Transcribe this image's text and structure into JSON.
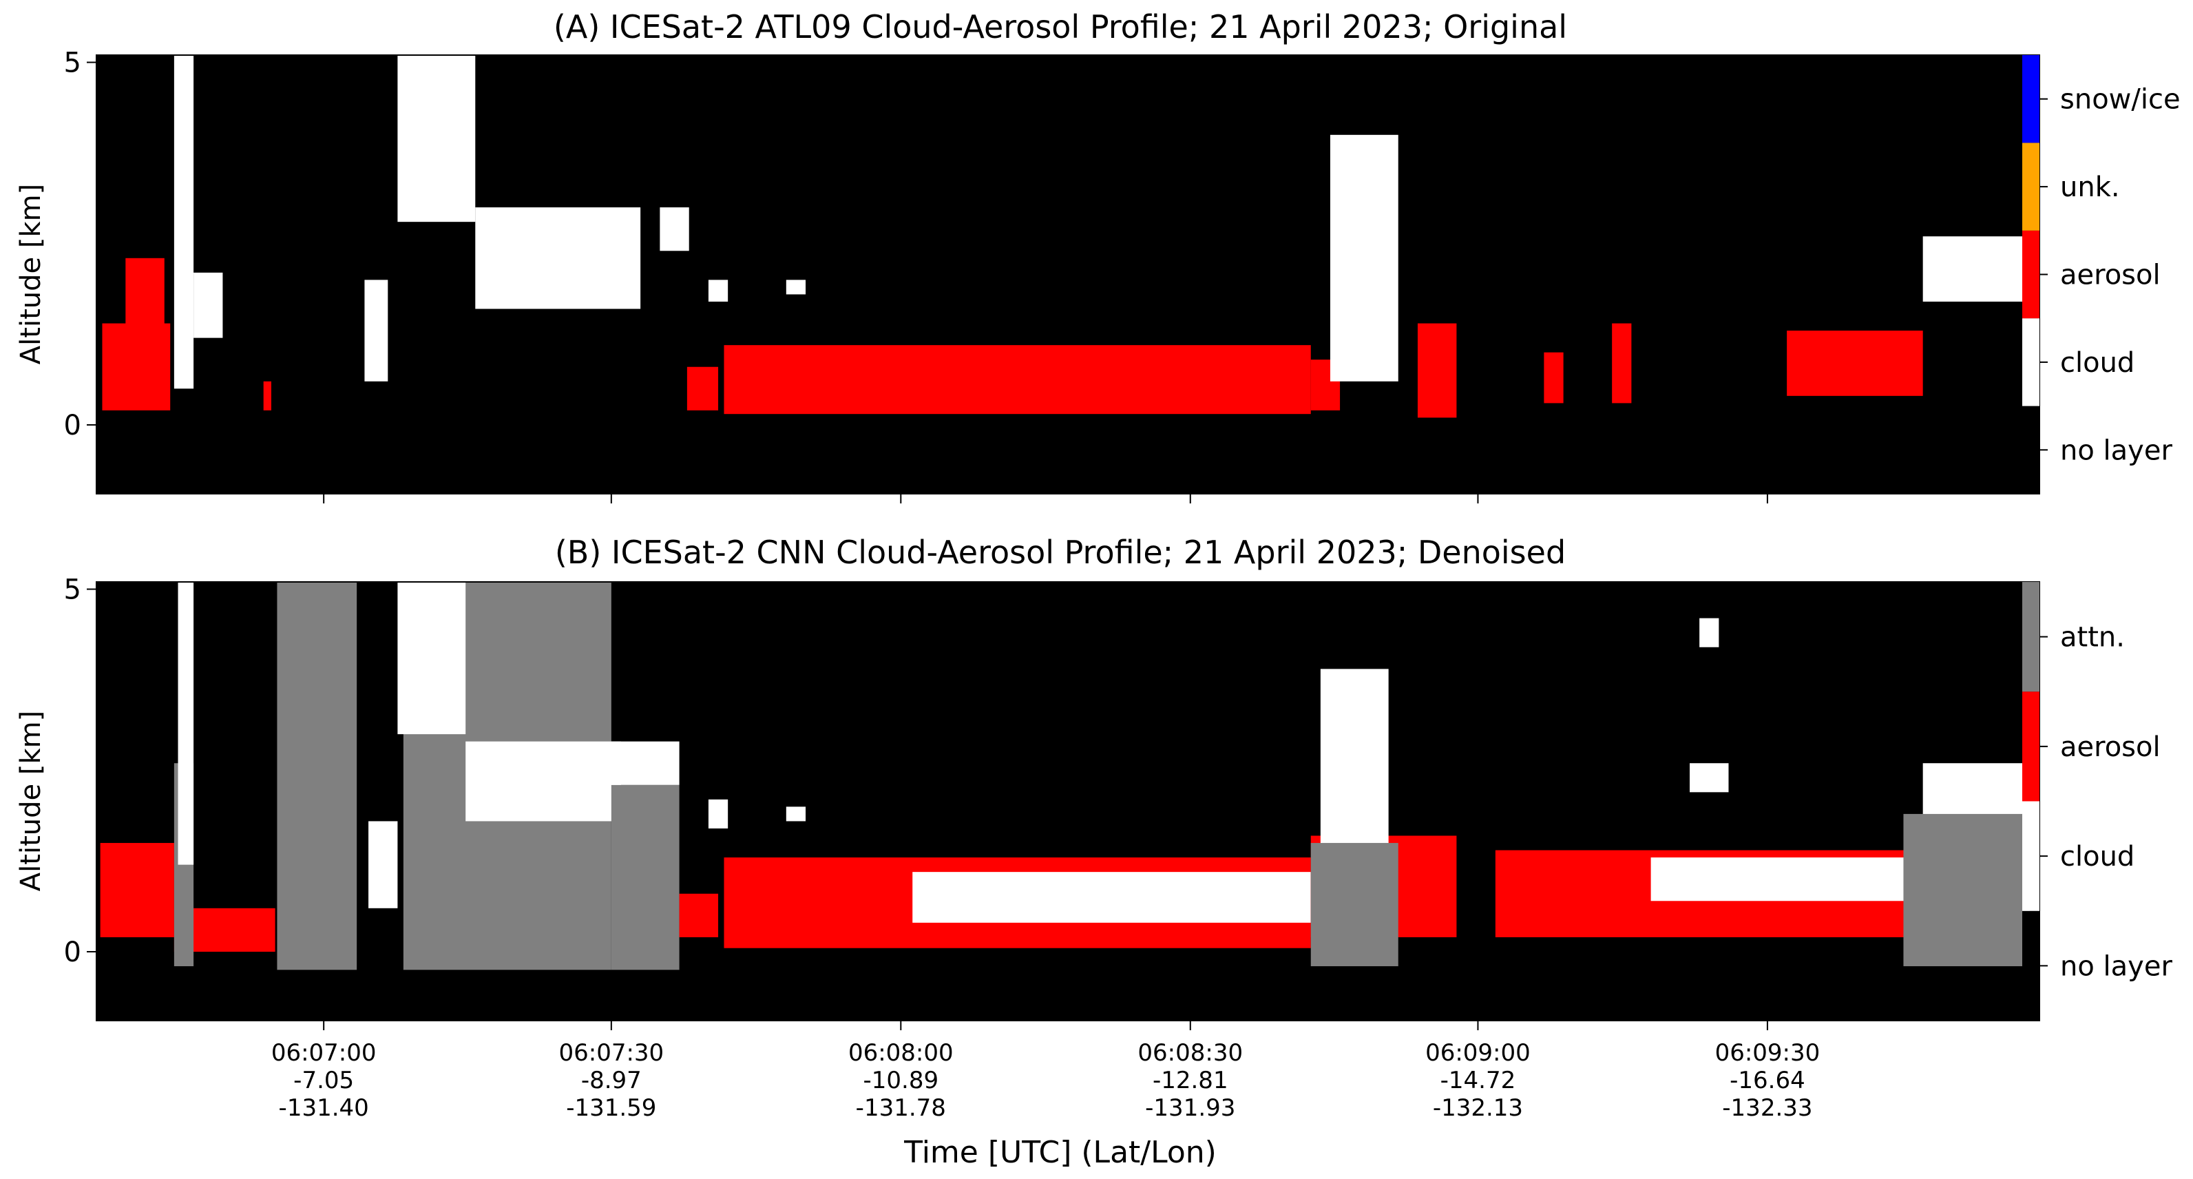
{
  "chart_data": [
    {
      "type": "heatmap",
      "panel": "A",
      "title": "(A) ICESat-2 ATL09 Cloud-Aerosol Profile; 21 April 2023; Original",
      "ylabel": "Altitude [km]",
      "yticks": [
        0,
        5
      ],
      "ylim": [
        -0.95,
        5.1
      ],
      "xlim": [
        0,
        100
      ],
      "x_tick_positions": [
        11.7,
        26.5,
        41.4,
        56.3,
        71.1,
        86.0
      ],
      "classes": [
        {
          "name": "no layer",
          "color": "#000000"
        },
        {
          "name": "cloud",
          "color": "#ffffff"
        },
        {
          "name": "aerosol",
          "color": "#ff0000"
        },
        {
          "name": "unk.",
          "color": "#ffa500"
        },
        {
          "name": "snow/ice",
          "color": "#0000ff"
        }
      ],
      "layers": [
        {
          "class": "aerosol",
          "x0": 0.3,
          "x1": 3.8,
          "bottom": 0.2,
          "top": 1.4
        },
        {
          "class": "aerosol",
          "x0": 1.5,
          "x2": 0,
          "x1": 3.5,
          "bottom": 0.3,
          "top": 2.3
        },
        {
          "class": "cloud",
          "x0": 4.0,
          "x1": 5.0,
          "bottom": 0.5,
          "top": 5.1
        },
        {
          "class": "cloud",
          "x0": 5.0,
          "x1": 6.5,
          "bottom": 1.2,
          "top": 2.1
        },
        {
          "class": "aerosol",
          "x0": 8.6,
          "x1": 9.0,
          "bottom": 0.2,
          "top": 0.6
        },
        {
          "class": "cloud",
          "x0": 13.8,
          "x1": 15.0,
          "bottom": 0.6,
          "top": 2.0
        },
        {
          "class": "cloud",
          "x0": 15.5,
          "x1": 19.5,
          "bottom": 2.8,
          "top": 5.1
        },
        {
          "class": "cloud",
          "x0": 19.5,
          "x1": 28.0,
          "bottom": 1.6,
          "top": 3.0
        },
        {
          "class": "cloud",
          "x0": 29.0,
          "x1": 30.5,
          "bottom": 2.4,
          "top": 3.0
        },
        {
          "class": "cloud",
          "x0": 31.5,
          "x1": 32.5,
          "bottom": 1.7,
          "top": 2.0
        },
        {
          "class": "cloud",
          "x0": 35.5,
          "x1": 36.5,
          "bottom": 1.8,
          "top": 2.0
        },
        {
          "class": "aerosol",
          "x0": 30.4,
          "x1": 32.0,
          "bottom": 0.2,
          "top": 0.8
        },
        {
          "class": "aerosol",
          "x0": 32.3,
          "x1": 62.5,
          "bottom": 0.15,
          "top": 1.1
        },
        {
          "class": "aerosol",
          "x0": 62.5,
          "x1": 64.0,
          "bottom": 0.2,
          "top": 0.9
        },
        {
          "class": "cloud",
          "x0": 63.5,
          "x1": 67.0,
          "bottom": 0.6,
          "top": 4.0
        },
        {
          "class": "aerosol",
          "x0": 68.0,
          "x1": 70.0,
          "bottom": 0.1,
          "top": 1.4
        },
        {
          "class": "aerosol",
          "x0": 74.5,
          "x1": 75.5,
          "bottom": 0.3,
          "top": 1.0
        },
        {
          "class": "aerosol",
          "x0": 78.0,
          "x1": 79.0,
          "bottom": 0.3,
          "top": 1.4
        },
        {
          "class": "aerosol",
          "x0": 87.0,
          "x1": 94.0,
          "bottom": 0.4,
          "top": 1.3
        },
        {
          "class": "cloud",
          "x0": 94.0,
          "x1": 99.8,
          "bottom": 1.7,
          "top": 2.6
        }
      ]
    },
    {
      "type": "heatmap",
      "panel": "B",
      "title": "(B) ICESat-2 CNN Cloud-Aerosol Profile; 21 April 2023; Denoised",
      "ylabel": "Altitude [km]",
      "xlabel": "Time [UTC] (Lat/Lon)",
      "yticks": [
        0,
        5
      ],
      "ylim": [
        -0.95,
        5.1
      ],
      "xlim": [
        0,
        100
      ],
      "x_tick_positions": [
        11.7,
        26.5,
        41.4,
        56.3,
        71.1,
        86.0
      ],
      "x_tick_labels": [
        [
          "06:07:00",
          "-7.05",
          "-131.40"
        ],
        [
          "06:07:30",
          "-8.97",
          "-131.59"
        ],
        [
          "06:08:00",
          "-10.89",
          "-131.78"
        ],
        [
          "06:08:30",
          "-12.81",
          "-131.93"
        ],
        [
          "06:09:00",
          "-14.72",
          "-132.13"
        ],
        [
          "06:09:30",
          "-16.64",
          "-132.33"
        ]
      ],
      "classes": [
        {
          "name": "no layer",
          "color": "#000000"
        },
        {
          "name": "cloud",
          "color": "#ffffff"
        },
        {
          "name": "aerosol",
          "color": "#ff0000"
        },
        {
          "name": "attn.",
          "color": "#808080"
        }
      ],
      "layers": [
        {
          "class": "aerosol",
          "x0": 0.2,
          "x1": 4.0,
          "bottom": 0.2,
          "top": 1.5
        },
        {
          "class": "aerosol",
          "x0": 4.0,
          "x1": 9.2,
          "bottom": 0.0,
          "top": 0.6
        },
        {
          "class": "attn.",
          "x0": 4.0,
          "x1": 5.0,
          "bottom": -0.2,
          "top": 2.6
        },
        {
          "class": "cloud",
          "x0": 4.2,
          "x1": 5.0,
          "bottom": 1.2,
          "top": 5.1
        },
        {
          "class": "attn.",
          "x0": 9.3,
          "x1": 13.4,
          "bottom": -0.25,
          "top": 5.1
        },
        {
          "class": "attn.",
          "x0": 15.8,
          "x1": 26.5,
          "bottom": -0.25,
          "top": 5.1
        },
        {
          "class": "cloud",
          "x0": 14.0,
          "x1": 15.5,
          "bottom": 0.6,
          "top": 1.8
        },
        {
          "class": "cloud",
          "x0": 15.5,
          "x1": 19.0,
          "bottom": 3.0,
          "top": 5.1
        },
        {
          "class": "cloud",
          "x0": 19.0,
          "x1": 27.0,
          "bottom": 1.8,
          "top": 2.9
        },
        {
          "class": "attn.",
          "x0": 26.5,
          "x1": 30.0,
          "bottom": -0.25,
          "top": 2.3
        },
        {
          "class": "cloud",
          "x0": 26.5,
          "x1": 30.0,
          "bottom": 2.3,
          "top": 2.9
        },
        {
          "class": "cloud",
          "x0": 31.5,
          "x1": 32.5,
          "bottom": 1.7,
          "top": 2.1
        },
        {
          "class": "cloud",
          "x0": 35.5,
          "x1": 36.5,
          "bottom": 1.8,
          "top": 2.0
        },
        {
          "class": "aerosol",
          "x0": 30.0,
          "x1": 32.0,
          "bottom": 0.2,
          "top": 0.8
        },
        {
          "class": "aerosol",
          "x0": 32.3,
          "x1": 62.5,
          "bottom": 0.05,
          "top": 1.3
        },
        {
          "class": "cloud",
          "x0": 42.0,
          "x1": 62.5,
          "bottom": 0.4,
          "top": 1.1
        },
        {
          "class": "aerosol",
          "x0": 62.5,
          "x1": 70.0,
          "bottom": 0.2,
          "top": 1.6
        },
        {
          "class": "cloud",
          "x0": 63.0,
          "x1": 66.5,
          "bottom": 1.3,
          "top": 3.9
        },
        {
          "class": "attn.",
          "x0": 62.5,
          "x1": 67.0,
          "bottom": -0.2,
          "top": 1.5
        },
        {
          "class": "aerosol",
          "x0": 72.0,
          "x1": 99.0,
          "bottom": 0.2,
          "top": 1.4
        },
        {
          "class": "cloud",
          "x0": 80.0,
          "x1": 96.0,
          "bottom": 0.7,
          "top": 1.3
        },
        {
          "class": "cloud",
          "x0": 82.0,
          "x1": 84.0,
          "bottom": 2.2,
          "top": 2.6
        },
        {
          "class": "cloud",
          "x0": 94.0,
          "x1": 99.8,
          "bottom": 1.7,
          "top": 2.6
        },
        {
          "class": "attn.",
          "x0": 93.0,
          "x1": 99.5,
          "bottom": -0.2,
          "top": 1.9
        },
        {
          "class": "cloud",
          "x0": 82.5,
          "x1": 83.5,
          "bottom": 4.2,
          "top": 4.6
        }
      ]
    }
  ]
}
